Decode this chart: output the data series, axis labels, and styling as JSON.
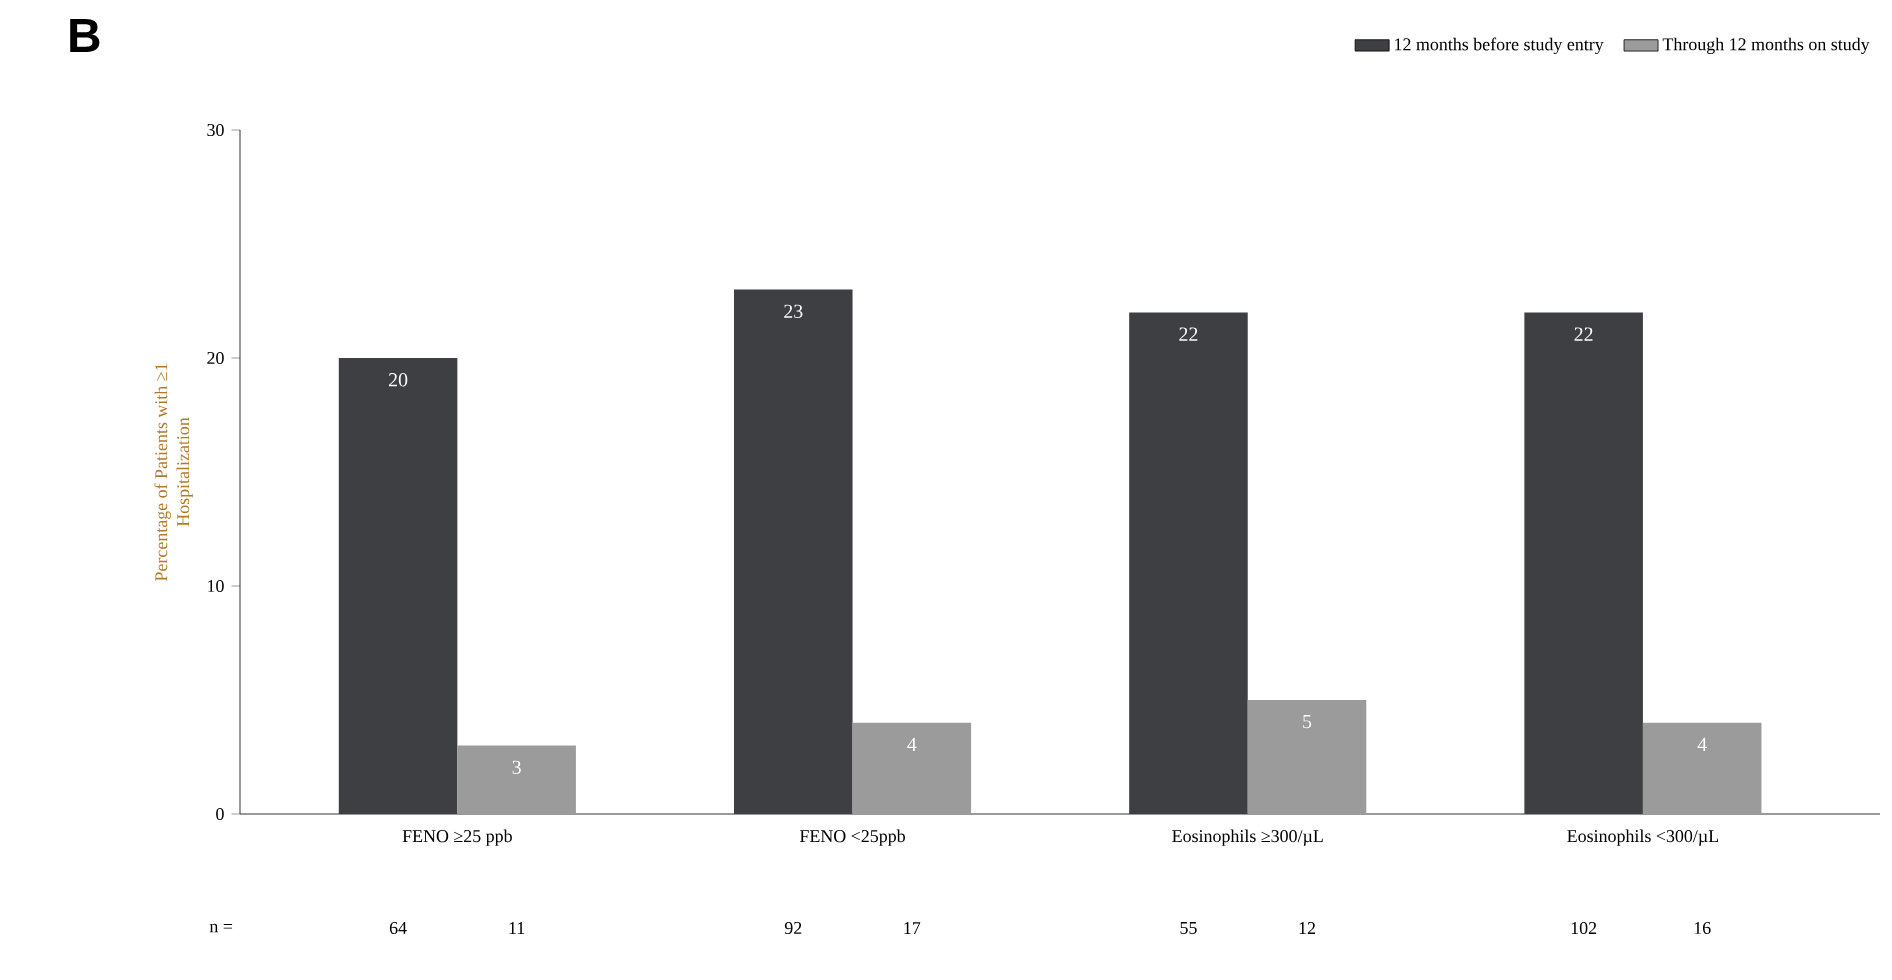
{
  "chart_data": {
    "type": "bar",
    "title": "B",
    "ylabel": "Percentage of Patients with ≥1 Hospitalization",
    "categories": [
      "FENO ≥25 ppb",
      "FENO <25ppb",
      "Eosinophils ≥300/µL",
      "Eosinophils <300/µL"
    ],
    "series": [
      {
        "name": "12 months before study entry",
        "color": "#3d3f42",
        "values": [
          20,
          23,
          22,
          22
        ]
      },
      {
        "name": "Through 12 months on study",
        "color": "#9b9b9b",
        "values": [
          3,
          4,
          5,
          4
        ]
      }
    ],
    "ylim": [
      0,
      30
    ],
    "yticks": [
      0,
      10,
      20,
      30
    ],
    "data_labels": true,
    "legend": "top right",
    "grid": false,
    "annotations": [
      "n =",
      "64",
      "11",
      "92",
      "17",
      "55",
      "12",
      "102",
      "16"
    ]
  }
}
